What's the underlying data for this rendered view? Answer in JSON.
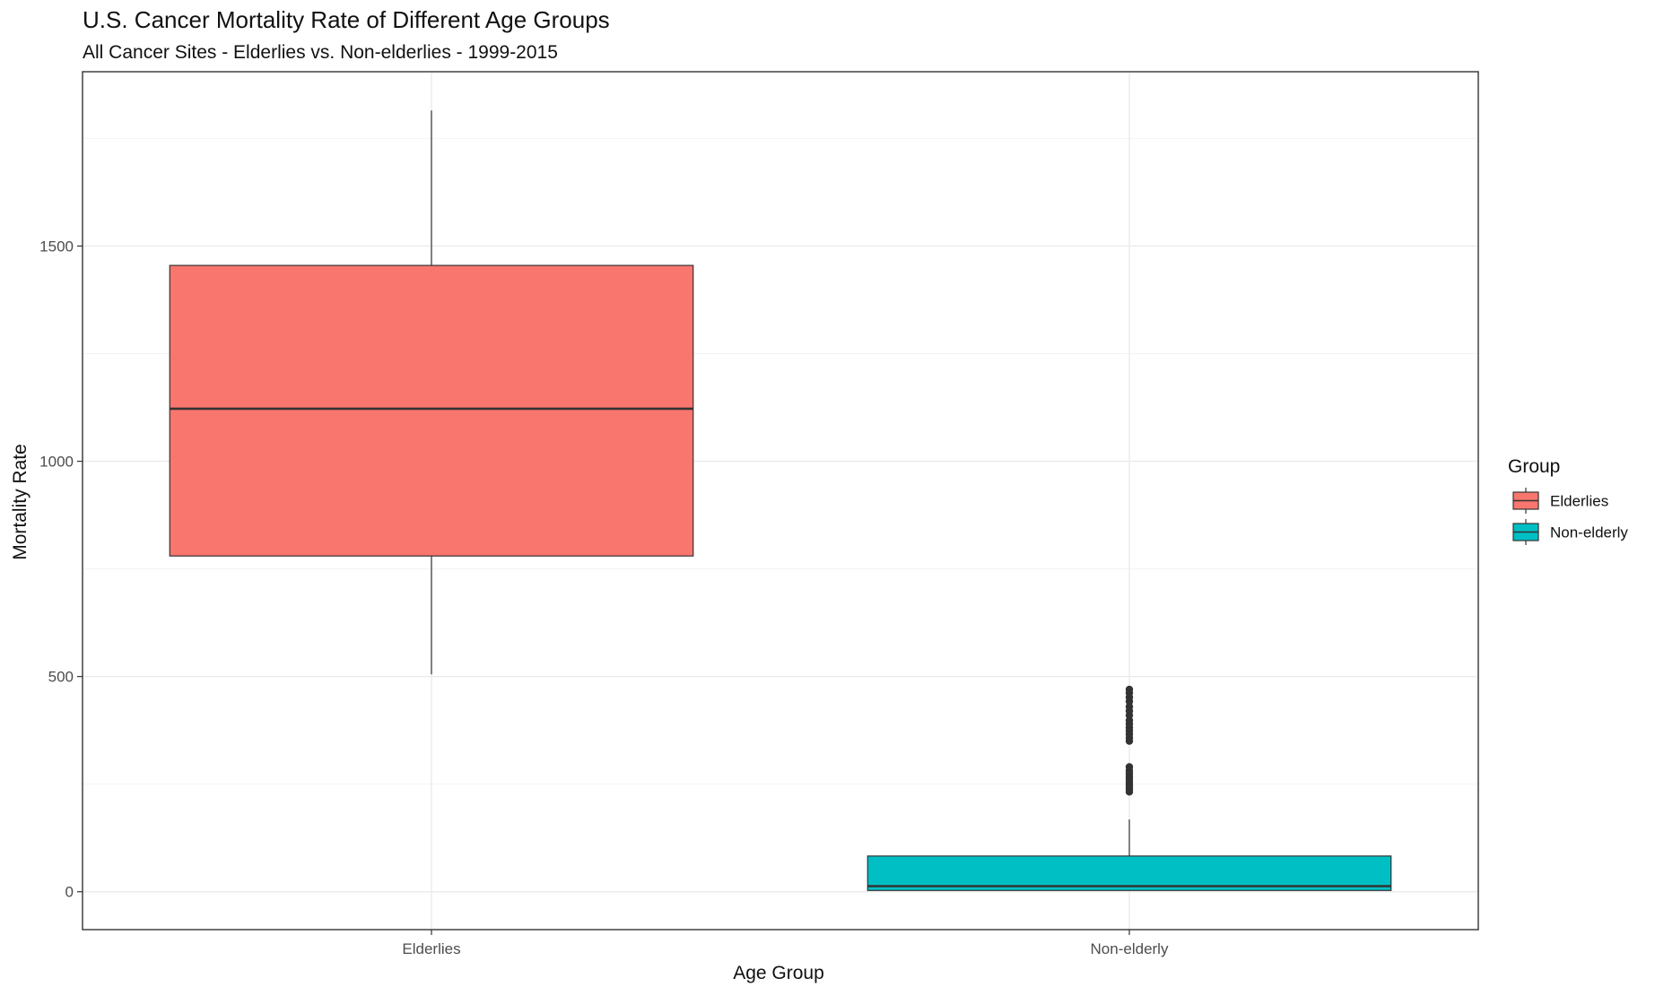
{
  "chart_data": {
    "type": "box",
    "title": "U.S. Cancer Mortality Rate of Different Age Groups",
    "subtitle": "All Cancer Sites - Elderlies vs. Non-elderlies - 1999-2015",
    "xlabel": "Age Group",
    "ylabel": "Mortality Rate",
    "ylim": [
      -88,
      1905
    ],
    "yticks": [
      0,
      500,
      1000,
      1500
    ],
    "grid": true,
    "legend": {
      "title": "Group",
      "position": "right"
    },
    "categories": [
      "Elderlies",
      "Non-elderly"
    ],
    "series": [
      {
        "name": "Elderlies",
        "color": "#F8766D",
        "min": 505,
        "q1": 780,
        "median": 1122,
        "q3": 1455,
        "max": 1815,
        "outliers": []
      },
      {
        "name": "Non-elderly",
        "color": "#00BFC4",
        "min": 2,
        "q1": 3,
        "median": 13,
        "q3": 83,
        "max": 168,
        "outliers": [
          232,
          238,
          244,
          250,
          256,
          262,
          268,
          275,
          282,
          290,
          350,
          358,
          366,
          374,
          382,
          390,
          398,
          410,
          420,
          430,
          442,
          452,
          462,
          470
        ]
      }
    ]
  }
}
